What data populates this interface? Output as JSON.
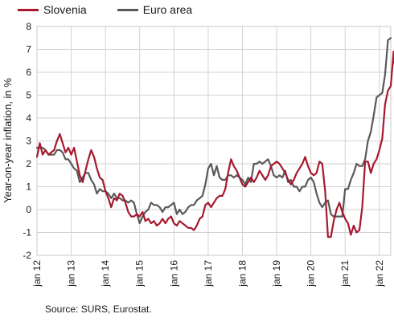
{
  "chart_data": {
    "type": "line",
    "title": "",
    "xlabel": "",
    "ylabel": "Year-on-year inflation, in %",
    "ylim": [
      -2,
      8
    ],
    "yticks": [
      -2,
      -1,
      0,
      1,
      2,
      3,
      4,
      5,
      6,
      7,
      8
    ],
    "xlim": [
      "2012-01",
      "2022-05"
    ],
    "xticks": [
      {
        "date": "2012-01",
        "label": "jan 12"
      },
      {
        "date": "2013-01",
        "label": "jan 13"
      },
      {
        "date": "2014-01",
        "label": "jan 14"
      },
      {
        "date": "2015-01",
        "label": "jan 15"
      },
      {
        "date": "2016-01",
        "label": "jan 16"
      },
      {
        "date": "2017-01",
        "label": "jan 17"
      },
      {
        "date": "2018-01",
        "label": "jan 18"
      },
      {
        "date": "2019-01",
        "label": "jan 19"
      },
      {
        "date": "2020-01",
        "label": "jan 20"
      },
      {
        "date": "2021-01",
        "label": "jan 21"
      },
      {
        "date": "2022-01",
        "label": "jan 22"
      }
    ],
    "grid": true,
    "legend": "top",
    "series": [
      {
        "name": "Slovenia",
        "color": "#a6192e",
        "start": "2012-01",
        "values": [
          2.3,
          2.9,
          2.4,
          2.6,
          2.4,
          2.5,
          2.6,
          3.0,
          3.3,
          2.9,
          2.5,
          2.7,
          2.4,
          2.7,
          2.1,
          1.5,
          1.2,
          1.7,
          2.2,
          2.6,
          2.3,
          1.8,
          1.4,
          1.3,
          0.8,
          0.5,
          0.1,
          0.5,
          0.4,
          0.7,
          0.6,
          0.3,
          -0.1,
          -0.3,
          -0.3,
          -0.2,
          -0.3,
          -0.1,
          -0.5,
          -0.4,
          -0.6,
          -0.5,
          -0.7,
          -0.6,
          -0.4,
          -0.6,
          -0.4,
          -0.3,
          -0.6,
          -0.7,
          -0.5,
          -0.6,
          -0.7,
          -0.8,
          -0.8,
          -0.9,
          -0.7,
          -0.4,
          -0.3,
          0.2,
          0.3,
          0.1,
          0.3,
          0.5,
          0.6,
          0.6,
          0.9,
          1.6,
          2.2,
          1.9,
          1.7,
          1.4,
          1.1,
          1.0,
          1.2,
          1.4,
          1.2,
          1.4,
          1.7,
          1.5,
          1.3,
          1.5,
          1.9,
          2.0,
          2.1,
          2.0,
          1.8,
          1.6,
          1.3,
          1.1,
          1.3,
          1.6,
          1.8,
          2.0,
          2.3,
          1.9,
          1.6,
          1.5,
          1.6,
          2.1,
          2.0,
          0.8,
          -1.2,
          -1.2,
          -0.5,
          0.0,
          0.3,
          -0.1,
          -0.4,
          -0.6,
          -1.1,
          -0.7,
          -1.0,
          -0.9,
          0.1,
          2.1,
          2.1,
          1.6,
          2.0,
          2.2,
          2.6,
          3.1,
          4.6,
          5.2,
          5.4,
          6.9,
          5.4,
          6.9
        ]
      },
      {
        "name": "Euro area",
        "color": "#595959",
        "start": "2012-01",
        "values": [
          2.7,
          2.7,
          2.7,
          2.6,
          2.4,
          2.4,
          2.4,
          2.6,
          2.6,
          2.5,
          2.2,
          2.2,
          2.0,
          1.8,
          1.7,
          1.2,
          1.4,
          1.6,
          1.6,
          1.3,
          1.1,
          0.7,
          0.9,
          0.8,
          0.8,
          0.7,
          0.5,
          0.7,
          0.5,
          0.5,
          0.4,
          0.4,
          0.3,
          0.4,
          0.3,
          -0.2,
          -0.6,
          -0.3,
          -0.1,
          0.0,
          0.3,
          0.2,
          0.2,
          0.1,
          -0.1,
          0.1,
          0.1,
          0.2,
          0.3,
          -0.2,
          0.0,
          -0.2,
          -0.1,
          0.1,
          0.2,
          0.2,
          0.4,
          0.5,
          0.6,
          1.1,
          1.8,
          2.0,
          1.5,
          1.9,
          1.4,
          1.3,
          1.3,
          1.5,
          1.5,
          1.4,
          1.5,
          1.4,
          1.3,
          1.1,
          1.4,
          1.2,
          2.0,
          2.0,
          2.1,
          2.0,
          2.1,
          2.2,
          1.9,
          1.5,
          1.4,
          1.5,
          1.4,
          1.7,
          1.2,
          1.3,
          1.0,
          1.0,
          0.8,
          1.0,
          1.0,
          1.3,
          1.4,
          1.2,
          0.7,
          0.3,
          0.1,
          0.3,
          0.4,
          -0.2,
          -0.3,
          -0.3,
          -0.3,
          -0.3,
          0.9,
          0.9,
          1.3,
          1.6,
          2.0,
          1.9,
          1.9,
          2.2,
          3.0,
          3.4,
          4.1,
          4.9,
          5.0,
          5.1,
          5.9,
          7.4,
          7.5
        ]
      }
    ]
  },
  "source_note": "Source: SURS, Eurostat."
}
